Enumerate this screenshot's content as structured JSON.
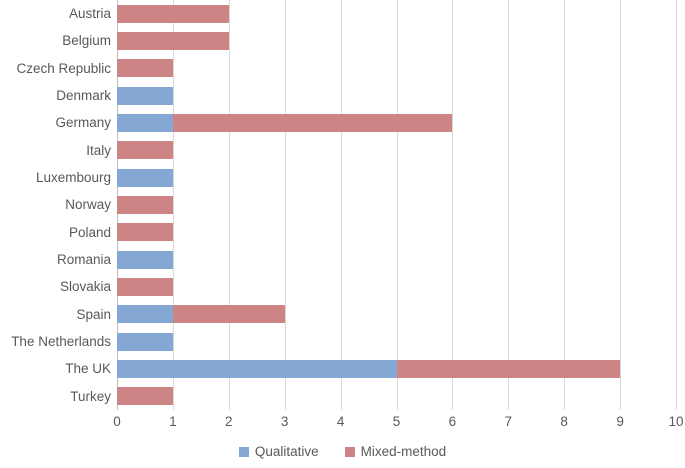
{
  "chart_data": {
    "type": "bar",
    "orientation": "horizontal",
    "stacked": true,
    "title": "",
    "xlabel": "",
    "ylabel": "",
    "categories": [
      "Austria",
      "Belgium",
      "Czech Republic",
      "Denmark",
      "Germany",
      "Italy",
      "Luxembourg",
      "Norway",
      "Poland",
      "Romania",
      "Slovakia",
      "Spain",
      "The Netherlands",
      "The UK",
      "Turkey"
    ],
    "series": [
      {
        "name": "Qualitative",
        "color": "#84A7D3",
        "values": [
          0,
          0,
          0,
          1,
          1,
          0,
          1,
          0,
          0,
          1,
          0,
          1,
          1,
          5,
          0
        ]
      },
      {
        "name": "Mixed-method",
        "color": "#CE8384",
        "values": [
          2,
          2,
          1,
          0,
          5,
          1,
          0,
          1,
          1,
          0,
          1,
          2,
          0,
          4,
          1
        ]
      }
    ],
    "xlim": [
      0,
      10
    ],
    "x_ticks": [
      "0",
      "1",
      "2",
      "3",
      "4",
      "5",
      "6",
      "7",
      "8",
      "9",
      "10"
    ],
    "grid": true,
    "legend_position": "bottom"
  },
  "colors": {
    "gridline": "#D9D9D9",
    "axis_line": "#BFBFBF",
    "text": "#595959",
    "background": "#FFFFFF"
  }
}
